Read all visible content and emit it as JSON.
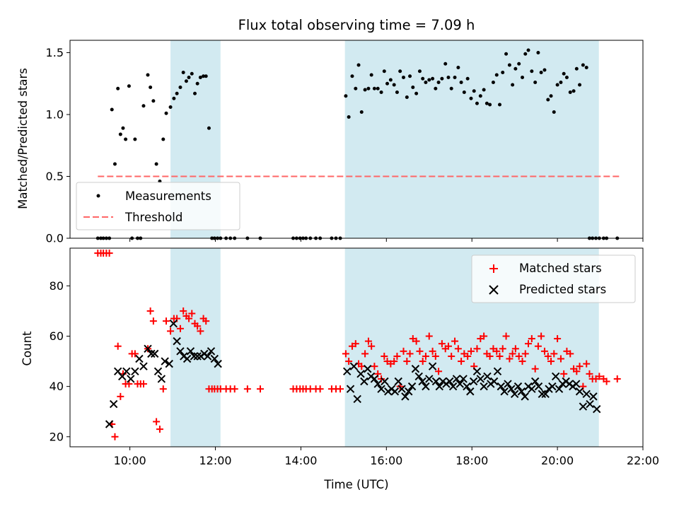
{
  "title": "Flux total observing time = 7.09 h",
  "colors": {
    "shade": "#add8e6",
    "measurement": "#000000",
    "threshold": "#ff6666",
    "matched": "#ff0000",
    "predicted": "#000000"
  },
  "chart_data": [
    {
      "type": "scatter",
      "ylabel": "Matched/Predicted stars",
      "xlabel": "",
      "xlim": [
        8.6,
        22.0
      ],
      "ylim": [
        0,
        1.6
      ],
      "yticks": [
        0,
        0.5,
        1.0,
        1.5
      ],
      "ytick_labels": [
        "0.0",
        "0.5",
        "1.0",
        "1.5"
      ],
      "shaded_intervals": [
        [
          10.95,
          12.12
        ],
        [
          15.03,
          20.97
        ]
      ],
      "threshold": {
        "name": "Threshold",
        "y": 0.5,
        "x_range": [
          9.25,
          21.45
        ]
      },
      "legend": [
        "Measurements",
        "Threshold"
      ],
      "legend_position": "lower-left",
      "series": [
        {
          "name": "Measurements",
          "x": [
            9.25,
            9.32,
            9.38,
            9.45,
            9.52,
            9.58,
            9.65,
            9.72,
            9.78,
            9.84,
            9.9,
            9.98,
            10.05,
            10.12,
            10.18,
            10.25,
            10.32,
            10.42,
            10.48,
            10.55,
            10.62,
            10.7,
            10.78,
            10.85,
            10.95,
            11.03,
            11.1,
            11.18,
            11.25,
            11.32,
            11.38,
            11.45,
            11.52,
            11.58,
            11.65,
            11.72,
            11.78,
            11.85,
            11.92,
            11.98,
            12.05,
            12.12,
            12.25,
            12.35,
            12.45,
            12.75,
            13.05,
            13.82,
            13.9,
            13.98,
            14.05,
            14.12,
            14.22,
            14.35,
            14.45,
            14.72,
            14.82,
            14.92,
            15.05,
            15.12,
            15.2,
            15.28,
            15.35,
            15.42,
            15.5,
            15.58,
            15.65,
            15.72,
            15.8,
            15.88,
            15.95,
            16.02,
            16.1,
            16.18,
            16.25,
            16.32,
            16.4,
            16.48,
            16.55,
            16.62,
            16.7,
            16.78,
            16.85,
            16.92,
            17.0,
            17.08,
            17.15,
            17.22,
            17.3,
            17.38,
            17.45,
            17.52,
            17.6,
            17.68,
            17.75,
            17.82,
            17.9,
            17.98,
            18.05,
            18.12,
            18.2,
            18.28,
            18.35,
            18.42,
            18.5,
            18.58,
            18.65,
            18.72,
            18.8,
            18.88,
            18.95,
            19.02,
            19.1,
            19.18,
            19.25,
            19.32,
            19.4,
            19.48,
            19.55,
            19.62,
            19.7,
            19.78,
            19.85,
            19.92,
            20.0,
            20.08,
            20.15,
            20.22,
            20.3,
            20.38,
            20.45,
            20.52,
            20.6,
            20.68,
            20.75,
            20.82,
            20.9,
            20.98,
            21.08,
            21.15,
            21.4
          ],
          "y": [
            0,
            0,
            0,
            0,
            0,
            1.04,
            0.6,
            1.21,
            0.84,
            0.89,
            0.8,
            1.23,
            0,
            0.8,
            0,
            0,
            1.07,
            1.32,
            1.22,
            1.11,
            0.6,
            0.46,
            0.8,
            1.01,
            1.06,
            1.13,
            1.17,
            1.22,
            1.34,
            1.27,
            1.3,
            1.33,
            1.17,
            1.25,
            1.3,
            1.31,
            1.31,
            0.89,
            0,
            0,
            0,
            0,
            0,
            0,
            0,
            0,
            0,
            0,
            0,
            0,
            0,
            0,
            0,
            0,
            0,
            0,
            0,
            0,
            1.15,
            0.98,
            1.31,
            1.21,
            1.4,
            1.02,
            1.2,
            1.21,
            1.32,
            1.21,
            1.21,
            1.18,
            1.35,
            1.25,
            1.28,
            1.24,
            1.18,
            1.35,
            1.3,
            1.14,
            1.31,
            1.22,
            1.17,
            1.35,
            1.29,
            1.26,
            1.28,
            1.29,
            1.21,
            1.26,
            1.29,
            1.41,
            1.3,
            1.21,
            1.3,
            1.38,
            1.26,
            1.18,
            1.29,
            1.13,
            1.19,
            1.09,
            1.15,
            1.2,
            1.09,
            1.08,
            1.26,
            1.32,
            1.08,
            1.34,
            1.49,
            1.4,
            1.24,
            1.37,
            1.41,
            1.3,
            1.49,
            1.52,
            1.35,
            1.26,
            1.5,
            1.34,
            1.36,
            1.12,
            1.15,
            1.02,
            1.24,
            1.26,
            1.33,
            1.3,
            1.18,
            1.19,
            1.37,
            1.24,
            1.4,
            1.38,
            0,
            0,
            0,
            0,
            0,
            0,
            0
          ]
        }
      ]
    },
    {
      "type": "scatter",
      "ylabel": "Count",
      "xlabel": "Time (UTC)",
      "xlim": [
        8.6,
        22.0
      ],
      "ylim": [
        16,
        95
      ],
      "yticks": [
        20,
        40,
        60,
        80
      ],
      "ytick_labels": [
        "20",
        "40",
        "60",
        "80"
      ],
      "xticks": [
        10,
        12,
        14,
        16,
        18,
        20,
        22
      ],
      "xtick_labels": [
        "10:00",
        "12:00",
        "14:00",
        "16:00",
        "18:00",
        "20:00",
        "22:00"
      ],
      "shaded_intervals": [
        [
          10.95,
          12.12
        ],
        [
          15.03,
          20.97
        ]
      ],
      "legend": [
        "Matched stars",
        "Predicted stars"
      ],
      "legend_position": "upper-right",
      "series": [
        {
          "name": "Matched stars",
          "marker": "+",
          "x": [
            9.25,
            9.32,
            9.38,
            9.45,
            9.52,
            9.58,
            9.65,
            9.72,
            9.78,
            9.84,
            9.9,
            9.98,
            10.05,
            10.12,
            10.18,
            10.25,
            10.32,
            10.42,
            10.48,
            10.55,
            10.62,
            10.7,
            10.78,
            10.85,
            10.95,
            11.03,
            11.1,
            11.18,
            11.25,
            11.32,
            11.38,
            11.45,
            11.52,
            11.58,
            11.65,
            11.72,
            11.78,
            11.85,
            11.92,
            11.98,
            12.05,
            12.12,
            12.25,
            12.35,
            12.45,
            12.75,
            13.05,
            13.82,
            13.9,
            13.98,
            14.05,
            14.12,
            14.22,
            14.35,
            14.45,
            14.72,
            14.82,
            14.92,
            15.05,
            15.12,
            15.2,
            15.28,
            15.35,
            15.42,
            15.5,
            15.58,
            15.65,
            15.72,
            15.8,
            15.88,
            15.95,
            16.02,
            16.1,
            16.18,
            16.25,
            16.32,
            16.4,
            16.48,
            16.55,
            16.62,
            16.7,
            16.78,
            16.85,
            16.92,
            17.0,
            17.08,
            17.15,
            17.22,
            17.3,
            17.38,
            17.45,
            17.52,
            17.6,
            17.68,
            17.75,
            17.82,
            17.9,
            17.98,
            18.05,
            18.12,
            18.2,
            18.28,
            18.35,
            18.42,
            18.5,
            18.58,
            18.65,
            18.72,
            18.8,
            18.88,
            18.95,
            19.02,
            19.1,
            19.18,
            19.25,
            19.32,
            19.4,
            19.48,
            19.55,
            19.62,
            19.7,
            19.78,
            19.85,
            19.92,
            20.0,
            20.08,
            20.15,
            20.22,
            20.3,
            20.38,
            20.45,
            20.52,
            20.6,
            20.68,
            20.75,
            20.82,
            20.9,
            20.98,
            21.08,
            21.15,
            21.4
          ],
          "y": [
            93,
            93,
            93,
            93,
            93,
            25,
            20,
            56,
            36,
            45,
            41,
            41,
            53,
            53,
            41,
            41,
            41,
            55,
            70,
            66,
            26,
            23,
            39,
            66,
            62,
            67,
            67,
            63,
            70,
            68,
            67,
            69,
            65,
            64,
            62,
            67,
            66,
            39,
            39,
            39,
            39,
            39,
            39,
            39,
            39,
            39,
            39,
            39,
            39,
            39,
            39,
            39,
            39,
            39,
            39,
            39,
            39,
            39,
            53,
            50,
            56,
            57,
            49,
            48,
            53,
            58,
            56,
            48,
            45,
            43,
            52,
            50,
            49,
            50,
            52,
            40,
            54,
            50,
            53,
            59,
            58,
            54,
            50,
            52,
            60,
            54,
            52,
            46,
            57,
            55,
            56,
            52,
            58,
            55,
            50,
            53,
            52,
            54,
            48,
            55,
            59,
            60,
            53,
            52,
            55,
            54,
            52,
            55,
            60,
            51,
            53,
            55,
            52,
            50,
            53,
            57,
            59,
            47,
            56,
            60,
            54,
            52,
            50,
            53,
            59,
            51,
            45,
            54,
            53,
            47,
            46,
            48,
            40,
            49,
            45,
            43,
            43,
            44,
            43,
            42,
            43
          ]
        },
        {
          "name": "Predicted stars",
          "marker": "x",
          "x": [
            9.52,
            9.62,
            9.72,
            9.82,
            9.92,
            10.02,
            10.12,
            10.22,
            10.32,
            10.42,
            10.5,
            10.58,
            10.66,
            10.74,
            10.82,
            10.92,
            11.02,
            11.1,
            11.18,
            11.26,
            11.34,
            11.42,
            11.5,
            11.58,
            11.66,
            11.74,
            11.82,
            11.9,
            11.98,
            12.06,
            15.08,
            15.16,
            15.24,
            15.32,
            15.4,
            15.48,
            15.56,
            15.64,
            15.72,
            15.8,
            15.88,
            15.96,
            16.04,
            16.12,
            16.2,
            16.28,
            16.36,
            16.44,
            16.52,
            16.6,
            16.68,
            16.76,
            16.84,
            16.92,
            17.0,
            17.08,
            17.16,
            17.24,
            17.32,
            17.4,
            17.48,
            17.56,
            17.64,
            17.72,
            17.8,
            17.88,
            17.96,
            18.04,
            18.12,
            18.2,
            18.28,
            18.36,
            18.44,
            18.52,
            18.6,
            18.68,
            18.76,
            18.84,
            18.92,
            19.0,
            19.08,
            19.16,
            19.24,
            19.32,
            19.4,
            19.48,
            19.56,
            19.64,
            19.72,
            19.8,
            19.88,
            19.96,
            20.04,
            20.12,
            20.2,
            20.28,
            20.36,
            20.44,
            20.52,
            20.6,
            20.68,
            20.76,
            20.84,
            20.92
          ],
          "y": [
            25,
            33,
            46,
            44,
            46,
            43,
            46,
            51,
            48,
            55,
            53,
            53,
            46,
            43,
            50,
            49,
            65,
            58,
            54,
            52,
            51,
            54,
            52,
            52,
            52,
            53,
            52,
            54,
            51,
            49,
            46,
            39,
            48,
            35,
            45,
            42,
            47,
            44,
            43,
            41,
            39,
            42,
            38,
            39,
            38,
            42,
            39,
            36,
            38,
            40,
            47,
            44,
            42,
            40,
            43,
            48,
            42,
            40,
            42,
            41,
            42,
            40,
            43,
            41,
            43,
            40,
            38,
            42,
            46,
            43,
            40,
            44,
            41,
            42,
            46,
            40,
            38,
            41,
            39,
            37,
            40,
            38,
            36,
            40,
            39,
            42,
            40,
            37,
            37,
            39,
            40,
            44,
            39,
            41,
            42,
            41,
            40,
            41,
            38,
            32,
            37,
            33,
            36,
            31
          ]
        }
      ]
    }
  ]
}
